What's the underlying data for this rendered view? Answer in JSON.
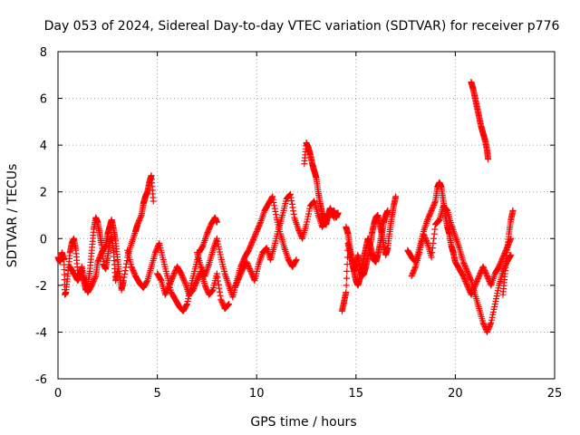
{
  "chart_data": {
    "type": "scatter",
    "title": "Day 053 of 2024, Sidereal Day-to-day VTEC variation (SDTVAR) for receiver p776",
    "xlabel": "GPS time / hours",
    "ylabel": "SDTVAR / TECUs",
    "xlim": [
      0,
      25
    ],
    "ylim": [
      -6,
      8
    ],
    "xticks": [
      0,
      5,
      10,
      15,
      20,
      25
    ],
    "yticks": [
      -6,
      -4,
      -2,
      0,
      2,
      4,
      6,
      8
    ],
    "grid": true,
    "marker": "+",
    "color": "#ff0000",
    "series": [
      {
        "name": "p776",
        "segments": [
          {
            "x": [
              0.0,
              0.1,
              0.2,
              0.3,
              0.35,
              0.4,
              0.5,
              0.6,
              0.7,
              0.8,
              0.9,
              1.0,
              1.1,
              1.2,
              1.3,
              1.4,
              1.5,
              1.6,
              1.7,
              1.8,
              1.9,
              2.0,
              2.1,
              2.2,
              2.3,
              2.4,
              2.5,
              2.6,
              2.7,
              2.8,
              2.9,
              3.0
            ],
            "y": [
              -0.8,
              -1.0,
              -0.6,
              -0.9,
              -2.4,
              -2.3,
              -1.5,
              -0.6,
              -0.2,
              0.0,
              -0.5,
              -1.5,
              -1.6,
              -1.2,
              -1.8,
              -2.2,
              -2.0,
              -1.4,
              -0.5,
              0.4,
              0.9,
              0.7,
              0.2,
              -0.3,
              -1.1,
              -1.3,
              -0.8,
              -0.2,
              0.1,
              -0.6,
              -1.8,
              -1.4
            ]
          },
          {
            "x": [
              0.6,
              0.8,
              1.0,
              1.2,
              1.4,
              1.5,
              1.7,
              1.9,
              2.0,
              2.2,
              2.4,
              2.5,
              2.6,
              2.7,
              2.8,
              2.9,
              3.0,
              3.1,
              3.2,
              3.3,
              3.5,
              3.7,
              3.9,
              4.0,
              4.2,
              4.3,
              4.4,
              4.5,
              4.6,
              4.7,
              4.8
            ],
            "y": [
              -1.2,
              -1.5,
              -1.8,
              -1.4,
              -1.9,
              -2.3,
              -2.0,
              -1.6,
              -1.0,
              -0.6,
              -0.3,
              0.2,
              0.5,
              0.8,
              0.4,
              -0.1,
              -0.9,
              -1.6,
              -2.2,
              -1.8,
              -0.8,
              -0.2,
              0.3,
              0.6,
              1.0,
              1.5,
              1.8,
              2.0,
              2.4,
              2.7,
              1.6
            ]
          },
          {
            "x": [
              3.5,
              3.7,
              3.9,
              4.1,
              4.3,
              4.5,
              4.7,
              4.9,
              5.1,
              5.3,
              5.5,
              5.7,
              5.9,
              6.1,
              6.3,
              6.5,
              6.7,
              6.9,
              7.1,
              7.3,
              7.5,
              7.7,
              7.9,
              8.0
            ],
            "y": [
              -0.5,
              -1.2,
              -1.6,
              -1.9,
              -2.1,
              -1.8,
              -1.2,
              -0.6,
              -0.2,
              -0.9,
              -1.6,
              -2.3,
              -2.6,
              -2.9,
              -3.1,
              -2.8,
              -2.0,
              -1.3,
              -0.6,
              -0.3,
              0.2,
              0.6,
              0.9,
              0.7
            ]
          },
          {
            "x": [
              5.0,
              5.2,
              5.4,
              5.6,
              5.8,
              6.0,
              6.2,
              6.4,
              6.6,
              6.8,
              7.0,
              7.2,
              7.4,
              7.6,
              7.8,
              8.0,
              8.2,
              8.4,
              8.6
            ],
            "y": [
              -1.5,
              -1.8,
              -2.4,
              -2.0,
              -1.6,
              -1.2,
              -1.5,
              -1.9,
              -2.4,
              -2.2,
              -1.8,
              -1.4,
              -2.0,
              -2.4,
              -2.2,
              -1.5,
              -2.6,
              -3.0,
              -2.8
            ]
          },
          {
            "x": [
              7.0,
              7.2,
              7.4,
              7.6,
              7.8,
              8.0,
              8.2,
              8.4,
              8.6,
              8.8,
              9.0,
              9.2,
              9.4,
              9.6,
              9.8,
              10.0,
              10.2,
              10.4,
              10.6,
              10.8,
              11.0,
              11.2,
              11.4,
              11.6,
              11.8,
              12.0
            ],
            "y": [
              -0.6,
              -1.2,
              -1.6,
              -1.1,
              -0.5,
              0.0,
              -0.8,
              -1.5,
              -2.0,
              -2.5,
              -1.8,
              -1.2,
              -0.8,
              -0.5,
              -0.1,
              0.3,
              0.7,
              1.2,
              1.5,
              1.8,
              0.9,
              0.2,
              -0.4,
              -0.9,
              -1.2,
              -0.9
            ]
          },
          {
            "x": [
              8.9,
              9.1,
              9.3,
              9.5,
              9.7,
              9.9,
              10.1,
              10.3,
              10.5,
              10.7,
              10.9,
              11.1,
              11.3,
              11.5,
              11.7,
              11.9,
              12.1,
              12.3,
              12.5,
              12.7,
              12.9,
              13.1,
              13.3,
              13.5,
              13.7,
              13.9
            ],
            "y": [
              -2.1,
              -1.7,
              -1.3,
              -1.0,
              -1.4,
              -1.8,
              -1.1,
              -0.6,
              -0.4,
              -0.9,
              -0.3,
              0.4,
              1.0,
              1.7,
              1.9,
              0.9,
              0.4,
              0.0,
              0.6,
              1.4,
              1.6,
              1.0,
              0.5,
              0.8,
              1.2,
              0.9
            ]
          },
          {
            "x": [
              12.4,
              12.5,
              12.6,
              12.7,
              12.8,
              12.9,
              13.0,
              13.1,
              13.2,
              13.3,
              13.4,
              13.5,
              13.6,
              13.7,
              13.8,
              13.9,
              14.0,
              14.1
            ],
            "y": [
              3.2,
              4.1,
              3.9,
              3.6,
              3.2,
              2.9,
              2.6,
              2.0,
              1.5,
              1.1,
              0.8,
              0.6,
              1.0,
              1.3,
              1.1,
              1.2,
              0.9,
              1.1
            ]
          },
          {
            "x": [
              14.3,
              14.4,
              14.5,
              14.6,
              14.7,
              14.8,
              14.9,
              15.0,
              15.1,
              15.2,
              15.3,
              15.4,
              15.5,
              15.6,
              15.7,
              15.8,
              15.9,
              16.0,
              16.1,
              16.2,
              16.3,
              16.4,
              16.5,
              16.6,
              16.7,
              16.8,
              16.9,
              17.0
            ],
            "y": [
              -3.1,
              -2.7,
              -2.3,
              -0.2,
              -0.6,
              -1.0,
              -1.4,
              -1.1,
              -0.7,
              -1.3,
              -1.6,
              -1.5,
              -1.2,
              -0.8,
              -0.4,
              0.2,
              0.6,
              0.9,
              1.0,
              0.6,
              0.2,
              -0.3,
              -0.7,
              -0.4,
              0.3,
              0.9,
              1.4,
              1.8
            ]
          },
          {
            "x": [
              14.5,
              14.6,
              14.7,
              14.8,
              14.9,
              15.0,
              15.1,
              15.2,
              15.3,
              15.4,
              15.5,
              15.6,
              15.7,
              15.8,
              15.9,
              16.0,
              16.1,
              16.2,
              16.3,
              16.4,
              16.5,
              16.6
            ],
            "y": [
              0.5,
              0.2,
              -0.4,
              -0.9,
              -1.4,
              -1.8,
              -2.0,
              -1.7,
              -1.2,
              -0.8,
              -0.4,
              0.0,
              -0.2,
              -0.6,
              -0.9,
              -1.0,
              -0.7,
              -0.3,
              0.2,
              0.7,
              1.0,
              1.2
            ]
          },
          {
            "x": [
              17.6,
              17.8,
              18.0,
              18.2,
              18.4,
              18.6,
              18.8,
              19.0,
              19.1,
              19.2,
              19.3,
              19.4,
              19.5,
              19.6,
              19.7,
              19.8,
              19.9,
              20.0,
              20.2,
              20.4,
              20.6,
              20.8,
              21.0,
              21.2,
              21.4,
              21.6,
              21.8,
              22.0,
              22.2,
              22.4,
              22.6,
              22.8
            ],
            "y": [
              -0.5,
              -0.8,
              -1.0,
              -0.4,
              0.3,
              0.8,
              1.2,
              1.6,
              2.2,
              2.4,
              2.2,
              1.6,
              1.0,
              0.5,
              0.2,
              -0.3,
              -0.6,
              -1.0,
              -1.3,
              -1.6,
              -2.0,
              -2.4,
              -2.0,
              -1.6,
              -1.2,
              -1.6,
              -2.0,
              -1.5,
              -1.2,
              -0.8,
              -0.4,
              0.0
            ]
          },
          {
            "x": [
              17.8,
              18.0,
              18.2,
              18.4,
              18.6,
              18.8,
              19.0,
              19.2,
              19.4,
              19.6,
              19.8,
              20.0,
              20.2,
              20.4,
              20.6,
              20.8,
              21.0,
              21.2,
              21.4,
              21.6,
              21.8,
              22.0,
              22.2,
              22.4,
              22.6,
              22.8
            ],
            "y": [
              -1.6,
              -1.2,
              -0.6,
              0.2,
              -0.2,
              -0.8,
              0.6,
              0.8,
              1.4,
              1.2,
              0.6,
              0.1,
              -0.4,
              -1.0,
              -1.4,
              -1.8,
              -2.4,
              -3.0,
              -3.6,
              -4.0,
              -3.6,
              -2.8,
              -2.0,
              -1.4,
              -1.0,
              -0.7
            ]
          },
          {
            "x": [
              22.4,
              22.5,
              22.6,
              22.7,
              22.8,
              22.9
            ],
            "y": [
              -2.4,
              -1.5,
              -0.6,
              0.2,
              0.8,
              1.2
            ]
          },
          {
            "x": [
              20.8,
              20.9,
              21.0,
              21.1,
              21.2,
              21.3,
              21.4,
              21.5,
              21.6,
              21.65
            ],
            "y": [
              6.7,
              6.4,
              6.0,
              5.6,
              5.2,
              4.8,
              4.5,
              4.2,
              3.8,
              3.4
            ]
          }
        ]
      }
    ]
  }
}
